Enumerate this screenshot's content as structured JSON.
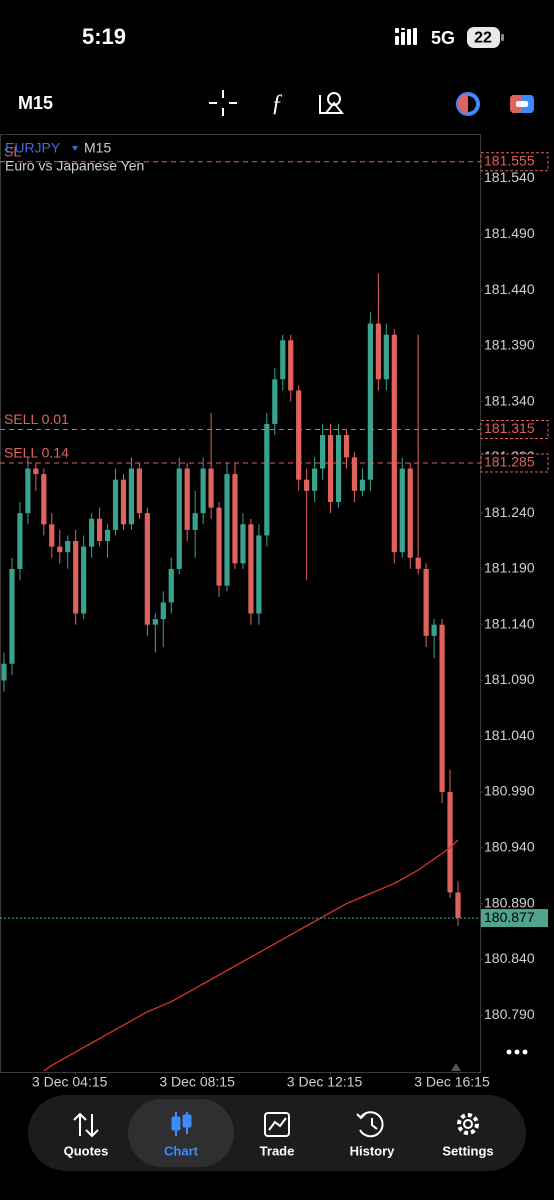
{
  "status": {
    "time": "5:19",
    "network": "5G",
    "battery": "22"
  },
  "toolbar": {
    "timeframe": "M15"
  },
  "chart_data": {
    "type": "candlestick",
    "symbol": "EURJPY",
    "timeframe": "M15",
    "description": "Euro vs Japanese Yen",
    "up_color": "#3aa38f",
    "down_color": "#e0625d",
    "categories": [
      null,
      null,
      null,
      null,
      null,
      null,
      null,
      null,
      null,
      "3 Dec 04:15",
      null,
      null,
      null,
      null,
      null,
      null,
      null,
      null,
      null,
      null,
      null,
      null,
      null,
      null,
      null,
      "3 Dec 08:15",
      null,
      null,
      null,
      null,
      null,
      null,
      null,
      null,
      null,
      null,
      null,
      null,
      null,
      null,
      null,
      "3 Dec 12:15",
      null,
      null,
      null,
      null,
      null,
      null,
      null,
      null,
      null,
      null,
      null,
      null,
      null,
      null,
      null,
      "3 Dec 16:15"
    ],
    "open": [
      181.09,
      181.105,
      181.19,
      181.24,
      181.28,
      181.275,
      181.23,
      181.21,
      181.205,
      181.215,
      181.15,
      181.21,
      181.235,
      181.215,
      181.225,
      181.27,
      181.23,
      181.28,
      181.24,
      181.14,
      181.145,
      181.16,
      181.19,
      181.28,
      181.225,
      181.24,
      181.28,
      181.245,
      181.175,
      181.275,
      181.195,
      181.23,
      181.15,
      181.22,
      181.32,
      181.36,
      181.395,
      181.35,
      181.27,
      181.26,
      181.28,
      181.31,
      181.25,
      181.31,
      181.29,
      181.26,
      181.27,
      181.41,
      181.36,
      181.4,
      181.205,
      181.28,
      181.2,
      181.19,
      181.13,
      181.14,
      180.99,
      180.9
    ],
    "high": [
      181.115,
      181.2,
      181.25,
      181.29,
      181.285,
      181.28,
      181.24,
      181.225,
      181.22,
      181.225,
      181.22,
      181.24,
      181.245,
      181.23,
      181.28,
      181.275,
      181.29,
      181.285,
      181.245,
      181.15,
      181.17,
      181.2,
      181.29,
      181.285,
      181.26,
      181.29,
      181.33,
      181.25,
      181.285,
      181.285,
      181.24,
      181.235,
      181.23,
      181.33,
      181.37,
      181.4,
      181.4,
      181.355,
      181.28,
      181.29,
      181.32,
      181.32,
      181.32,
      181.315,
      181.295,
      181.28,
      181.42,
      181.455,
      181.41,
      181.405,
      181.29,
      181.285,
      181.4,
      181.195,
      181.145,
      181.145,
      181.01,
      180.91
    ],
    "low": [
      181.08,
      181.095,
      181.18,
      181.23,
      181.26,
      181.22,
      181.2,
      181.195,
      181.19,
      181.14,
      181.145,
      181.2,
      181.21,
      181.2,
      181.22,
      181.225,
      181.225,
      181.235,
      181.13,
      181.115,
      181.12,
      181.15,
      181.185,
      181.215,
      181.2,
      181.23,
      181.235,
      181.165,
      181.17,
      181.19,
      181.19,
      181.14,
      181.14,
      181.21,
      181.31,
      181.35,
      181.34,
      181.26,
      181.18,
      181.25,
      181.27,
      181.24,
      181.245,
      181.28,
      181.25,
      181.255,
      181.26,
      181.35,
      181.35,
      181.195,
      181.2,
      181.19,
      181.185,
      181.12,
      181.11,
      180.98,
      180.895,
      180.87
    ],
    "close": [
      181.105,
      181.19,
      181.24,
      181.28,
      181.275,
      181.23,
      181.21,
      181.205,
      181.215,
      181.15,
      181.21,
      181.235,
      181.215,
      181.225,
      181.27,
      181.23,
      181.28,
      181.24,
      181.14,
      181.145,
      181.16,
      181.19,
      181.28,
      181.225,
      181.24,
      181.28,
      181.245,
      181.175,
      181.275,
      181.195,
      181.23,
      181.15,
      181.22,
      181.32,
      181.36,
      181.395,
      181.35,
      181.27,
      181.26,
      181.28,
      181.31,
      181.25,
      181.31,
      181.29,
      181.26,
      181.27,
      181.41,
      181.36,
      181.4,
      181.205,
      181.28,
      181.2,
      181.19,
      181.13,
      181.14,
      180.99,
      180.9,
      180.877
    ],
    "line": {
      "color": "#d9342b",
      "values": [
        null,
        null,
        null,
        null,
        null,
        180.74,
        180.745,
        180.749,
        180.753,
        180.757,
        180.761,
        180.765,
        180.769,
        180.773,
        180.777,
        180.781,
        180.785,
        180.789,
        180.793,
        180.796,
        180.799,
        180.802,
        180.806,
        180.81,
        180.814,
        180.818,
        180.822,
        180.826,
        180.83,
        180.834,
        180.838,
        180.842,
        180.846,
        180.85,
        180.854,
        180.858,
        180.862,
        180.866,
        180.87,
        180.874,
        180.878,
        180.882,
        180.886,
        180.89,
        180.893,
        180.896,
        180.899,
        180.902,
        180.905,
        180.908,
        180.912,
        180.916,
        180.92,
        180.925,
        180.93,
        180.935,
        180.94,
        180.947
      ]
    },
    "price_lines": [
      {
        "label": "SL",
        "value": 181.555,
        "color": "#e0625d"
      },
      {
        "label": "SELL 0.01",
        "value": 181.315,
        "color": "#e0625d"
      },
      {
        "label": "SELL 0.14",
        "value": 181.285,
        "color": "#e0625d"
      }
    ],
    "current_price": {
      "value": 180.877,
      "color": "#4fa38f"
    },
    "ylim": [
      180.739,
      181.579
    ],
    "yticks": [
      {
        "value": 181.54,
        "label": "181.540"
      },
      {
        "value": 181.49,
        "label": "181.490"
      },
      {
        "value": 181.44,
        "label": "181.440"
      },
      {
        "value": 181.39,
        "label": "181.390"
      },
      {
        "value": 181.34,
        "label": "181.340"
      },
      {
        "value": 181.29,
        "label": "181.290"
      },
      {
        "value": 181.24,
        "label": "181.240"
      },
      {
        "value": 181.19,
        "label": "181.190"
      },
      {
        "value": 181.14,
        "label": "181.140"
      },
      {
        "value": 181.09,
        "label": "181.090"
      },
      {
        "value": 181.04,
        "label": "181.040"
      },
      {
        "value": 180.99,
        "label": "180.990"
      },
      {
        "value": 180.94,
        "label": "180.940"
      },
      {
        "value": 180.89,
        "label": "180.890"
      },
      {
        "value": 180.84,
        "label": "180.840"
      },
      {
        "value": 180.79,
        "label": "180.790"
      }
    ]
  },
  "nav": [
    "Quotes",
    "Chart",
    "Trade",
    "History",
    "Settings"
  ]
}
